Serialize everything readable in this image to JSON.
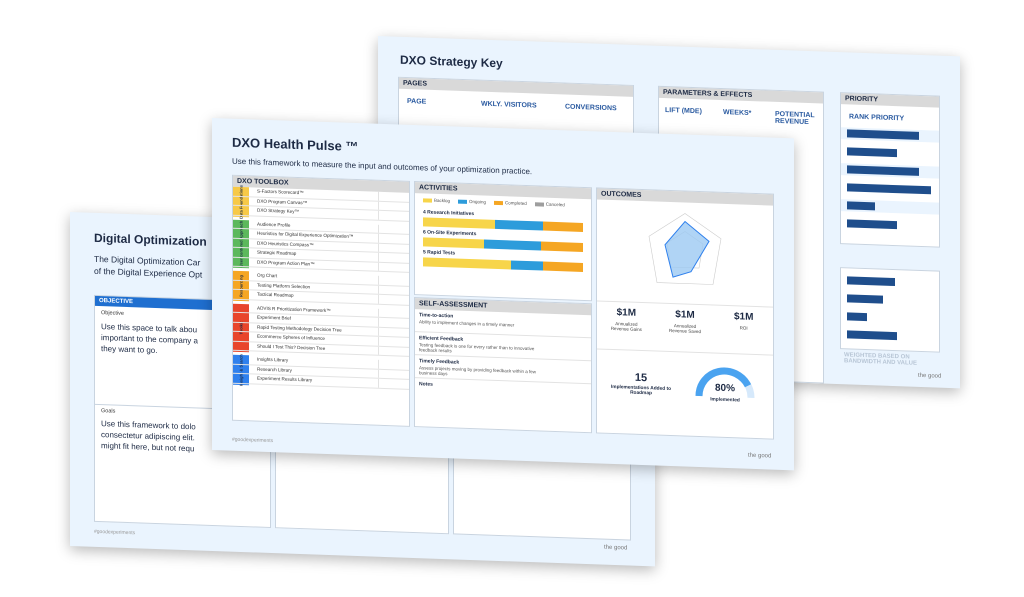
{
  "back_slide": {
    "title": "DXO Strategy Key",
    "pages": {
      "header": "PAGES",
      "columns": [
        "PAGE",
        "WKLY. VISITORS",
        "CONVERSIONS"
      ]
    },
    "parameters": {
      "header": "PARAMETERS & EFFECTS",
      "columns": [
        "LIFT (MDE)",
        "WEEKS*",
        "POTENTIAL REVENUE"
      ]
    },
    "priority": {
      "header": "PRIORITY",
      "columns": [
        "RANK PRIORITY"
      ]
    },
    "note": "WEIGHTED BASED ON BANDWIDTH AND VALUE",
    "brand": "the good"
  },
  "left_slide": {
    "title": "Digital Optimization",
    "intro": [
      "The Digital Optimization Car",
      "of the Digital Experience Opt"
    ],
    "objective_header": "OBJECTIVE",
    "objective_label": "Objective",
    "objective_text": [
      "Use this space to talk abou",
      "important to the company a",
      "they want to go."
    ],
    "goals_label": "Goals",
    "goals_text": [
      "Use this framework to dolo",
      "consectetur adipiscing elit.",
      "might fit here, but not requ"
    ],
    "footer": "#goodexperiments",
    "brand": "the good"
  },
  "front_slide": {
    "title": "DXO Health Pulse ™",
    "subtitle": "Use this framework to measure the input and outcomes of your optimization practice.",
    "toolbox": {
      "header": "DXO TOOLBOX",
      "sections": [
        {
          "name": "Data Foundations",
          "color": "#f7c948",
          "items": [
            "S-Factors Scorecard™",
            "DXO Program Canvas™",
            "DXO Strategy Key™"
          ]
        },
        {
          "name": "User-centered Approach",
          "color": "#5cb85c",
          "items": [
            "Audience Profile",
            "Heuristics for Digital Experience Optimization™",
            "DXO Heuristics Compass™",
            "Strategic Roadmap",
            "DXO Program Action Plan™"
          ]
        },
        {
          "name": "Resourcing",
          "color": "#f5a623",
          "items": [
            "Org Chart",
            "Testing Platform Selection",
            "Tactical Roadmap"
          ]
        },
        {
          "name": "Toolkit",
          "color": "#e8452c",
          "items": [
            "ADVIS R Prioritization Framework™",
            "Experiment Brief",
            "Rapid Testing Methodology Decision Tree",
            "Ecommerce Spheres of Influence",
            "Should I Test This? Decision Tree"
          ]
        },
        {
          "name": "Insight & Search",
          "color": "#2f80ed",
          "items": [
            "Insights Library",
            "Research Library",
            "Experiment Results Library"
          ]
        }
      ]
    },
    "activities": {
      "header": "ACTIVITIES",
      "legend": [
        {
          "name": "Backlog",
          "color": "#f7d54a"
        },
        {
          "name": "Ongoing",
          "color": "#2d9cdb"
        },
        {
          "name": "Completed",
          "color": "#f5a623"
        },
        {
          "name": "Canceled",
          "color": "#9e9e9e"
        }
      ],
      "groups": [
        "4 Research Initiatives",
        "6 On-Site Experiments",
        "5 Rapid Tests"
      ]
    },
    "self_assessment": {
      "header": "SELF-ASSESSMENT",
      "rows": [
        {
          "label": "Time-to-action",
          "text": "Ability to implement changes in a timely manner"
        },
        {
          "label": "Efficient Feedback",
          "text": "Testing feedback is one for every rather than to innovative feedback results"
        },
        {
          "label": "Timely Feedback",
          "text": "Assess projects moving by providing feedback within a few business days"
        }
      ],
      "notes": "Notes"
    },
    "outcomes": {
      "header": "OUTCOMES",
      "kpis": [
        {
          "value": "$1M",
          "label": "Annualized Revenue Gains"
        },
        {
          "value": "$1M",
          "label": "Annualized Revenue Saved"
        },
        {
          "value": "$1M",
          "label": "ROI"
        }
      ],
      "implementations": {
        "value": "15",
        "label": "Implementations Added to Roadmap"
      },
      "implemented": {
        "value": "80%",
        "label": "Implemented"
      }
    },
    "footer": "#goodexperiments",
    "brand": "the good"
  }
}
